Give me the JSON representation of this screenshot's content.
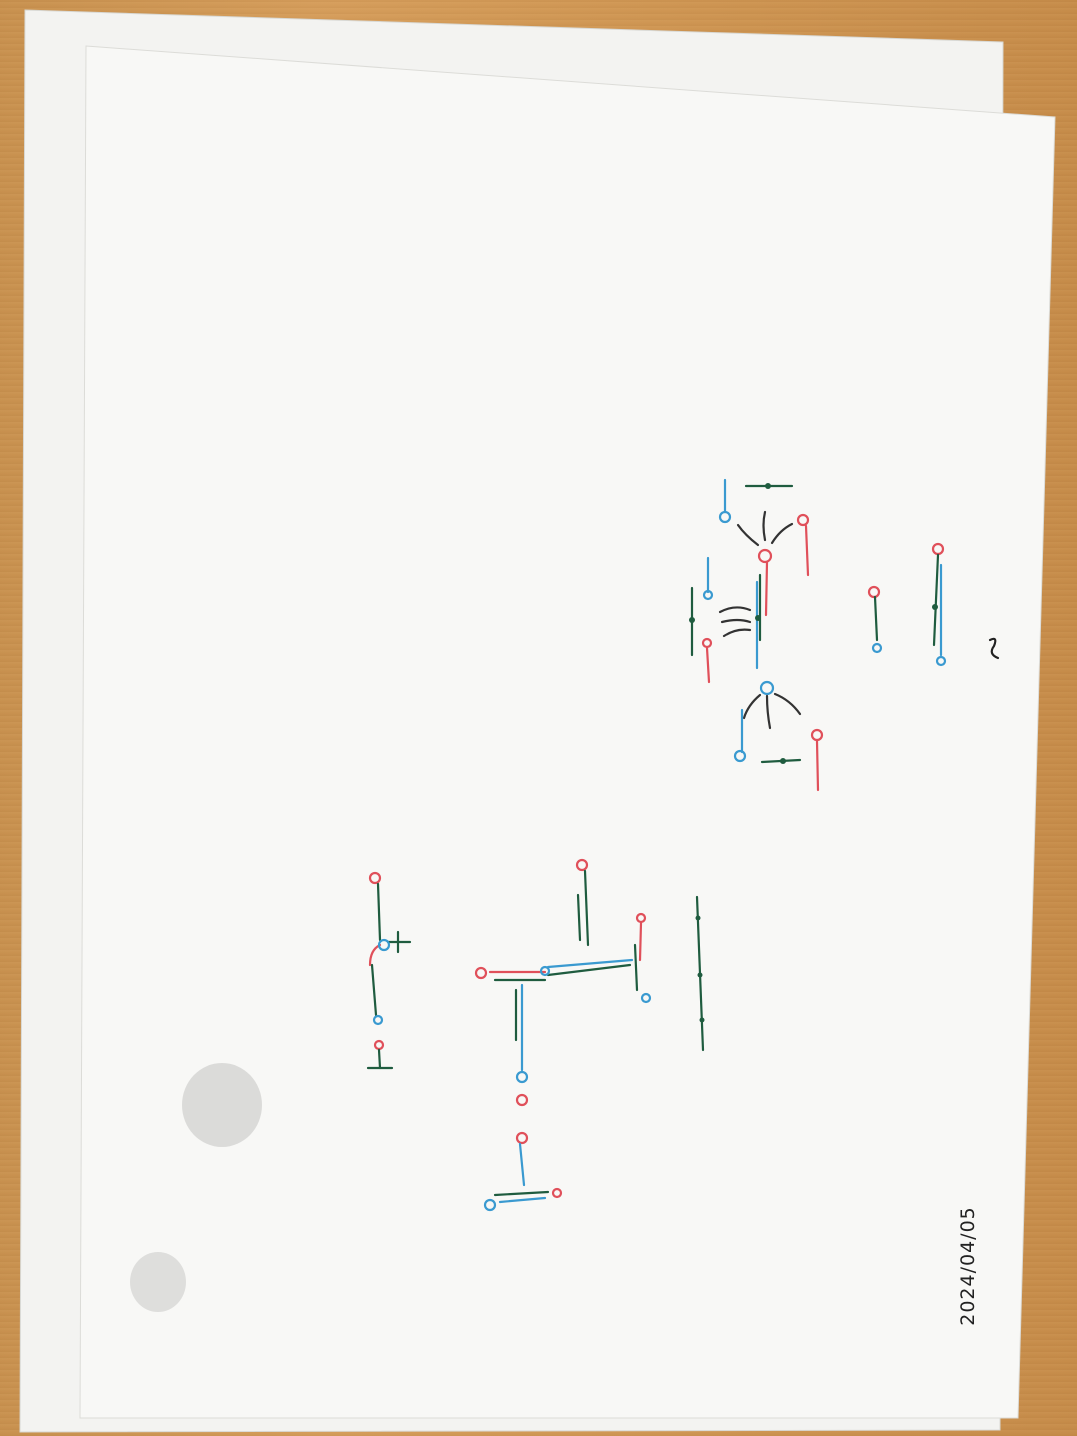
{
  "photo": {
    "handwritten_date": "2024/04/05",
    "colors": {
      "table": "#cf9653",
      "paper": "#f7f7f5",
      "paper_back": "#f3f3f1",
      "ink_green": "#1f5c3f",
      "ink_red": "#e0505a",
      "ink_blue": "#3a9ad0",
      "ink_black": "#333333"
    }
  }
}
